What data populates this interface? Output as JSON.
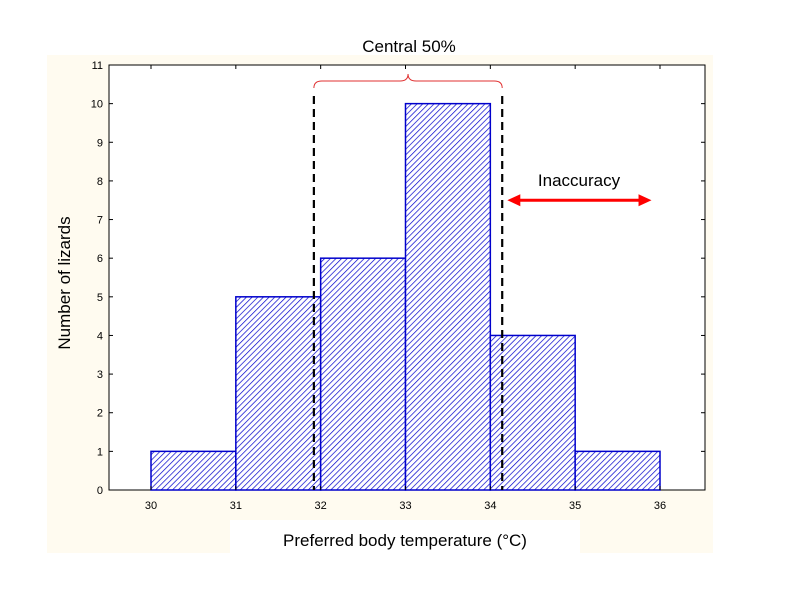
{
  "chart_data": {
    "type": "bar",
    "title": "",
    "xlabel": "Preferred body temperature (°C)",
    "ylabel": "Number of lizards",
    "bins": [
      {
        "start": 30,
        "end": 31,
        "value": 1
      },
      {
        "start": 31,
        "end": 32,
        "value": 5
      },
      {
        "start": 32,
        "end": 33,
        "value": 6
      },
      {
        "start": 33,
        "end": 34,
        "value": 10
      },
      {
        "start": 34,
        "end": 35,
        "value": 4
      },
      {
        "start": 35,
        "end": 36,
        "value": 1
      }
    ],
    "xlim": [
      30,
      36
    ],
    "ylim": [
      0,
      11
    ],
    "x_ticks": [
      "30",
      "31",
      "32",
      "33",
      "34",
      "35",
      "36"
    ],
    "y_ticks": [
      "0",
      "1",
      "2",
      "3",
      "4",
      "5",
      "6",
      "7",
      "8",
      "9",
      "10",
      "11"
    ],
    "grid": false,
    "legend": "none",
    "bar_color": "#0000cc",
    "background_color": "#fffbf0",
    "annotations": {
      "central_label": "Central 50%",
      "central_range": [
        31.92,
        34.14
      ],
      "inaccuracy_label": "Inaccuracy",
      "inaccuracy_range": [
        34.2,
        35.9
      ],
      "inaccuracy_y": 7.5,
      "bracket_color": "#e03030",
      "arrow_color": "#ff0000"
    }
  }
}
